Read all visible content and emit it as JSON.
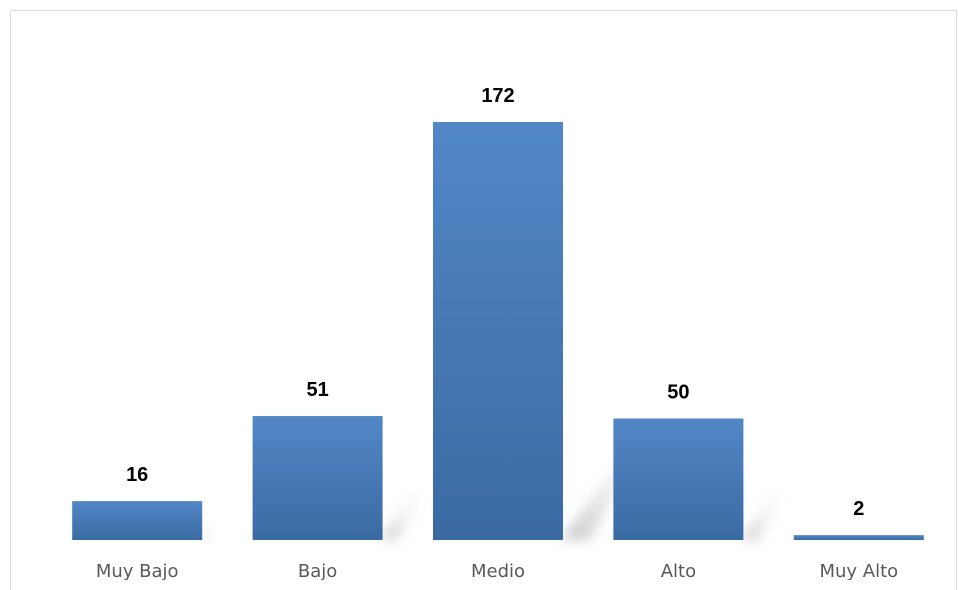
{
  "chart_data": {
    "type": "bar",
    "title": "",
    "xlabel": "",
    "ylabel": "",
    "categories": [
      "Muy Bajo",
      "Bajo",
      "Medio",
      "Alto",
      "Muy Alto"
    ],
    "values": [
      16,
      51,
      172,
      50,
      2
    ],
    "data_labels": [
      "16",
      "51",
      "172",
      "50",
      "2"
    ],
    "ylim": [
      0,
      172
    ],
    "grid": false,
    "legend": "none",
    "colors": {
      "bar_top": "#5287c6",
      "bar_bottom": "#3b6aa3",
      "label": "#000000",
      "axis_text": "#595959",
      "frame": "#d9d9d9"
    }
  }
}
